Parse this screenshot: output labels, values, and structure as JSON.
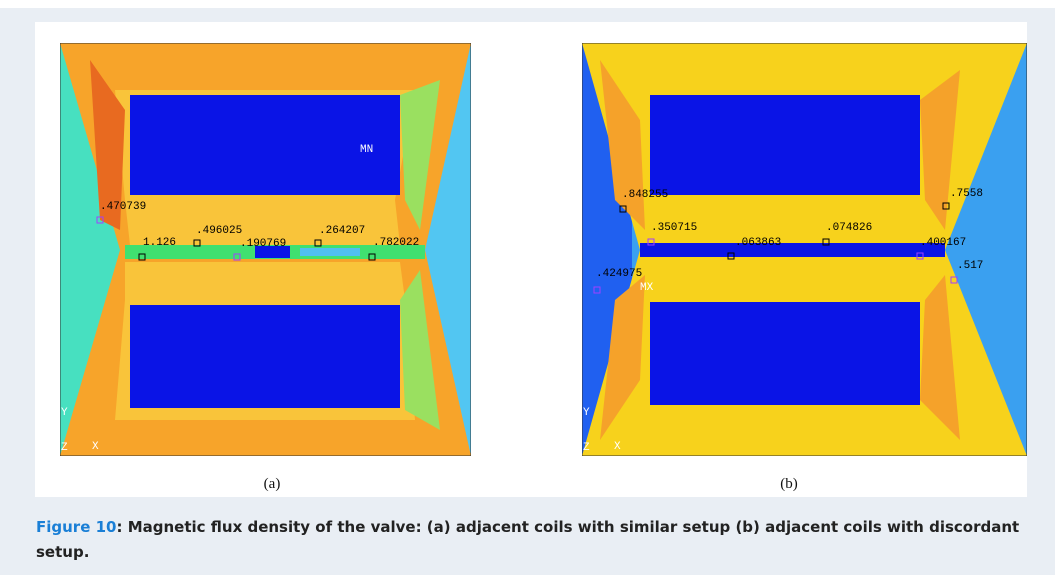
{
  "figure": {
    "panels": [
      {
        "label": "(a)",
        "annotations": [
          ".470739",
          "1.126",
          ".496025",
          ".190769",
          ".264207",
          ".782022",
          "MN",
          "Y",
          "Z",
          "X"
        ]
      },
      {
        "label": "(b)",
        "annotations": [
          ".848255",
          ".7558",
          ".350715",
          ".063863",
          ".074826",
          ".400167",
          ".424975",
          ".517",
          "MX",
          "Y",
          "Z",
          "X"
        ]
      }
    ]
  },
  "caption": {
    "label": "Figure 10",
    "text": ": Magnetic flux density of the valve: (a) adjacent coils with similar setup (b) adjacent coils with discordant setup."
  }
}
